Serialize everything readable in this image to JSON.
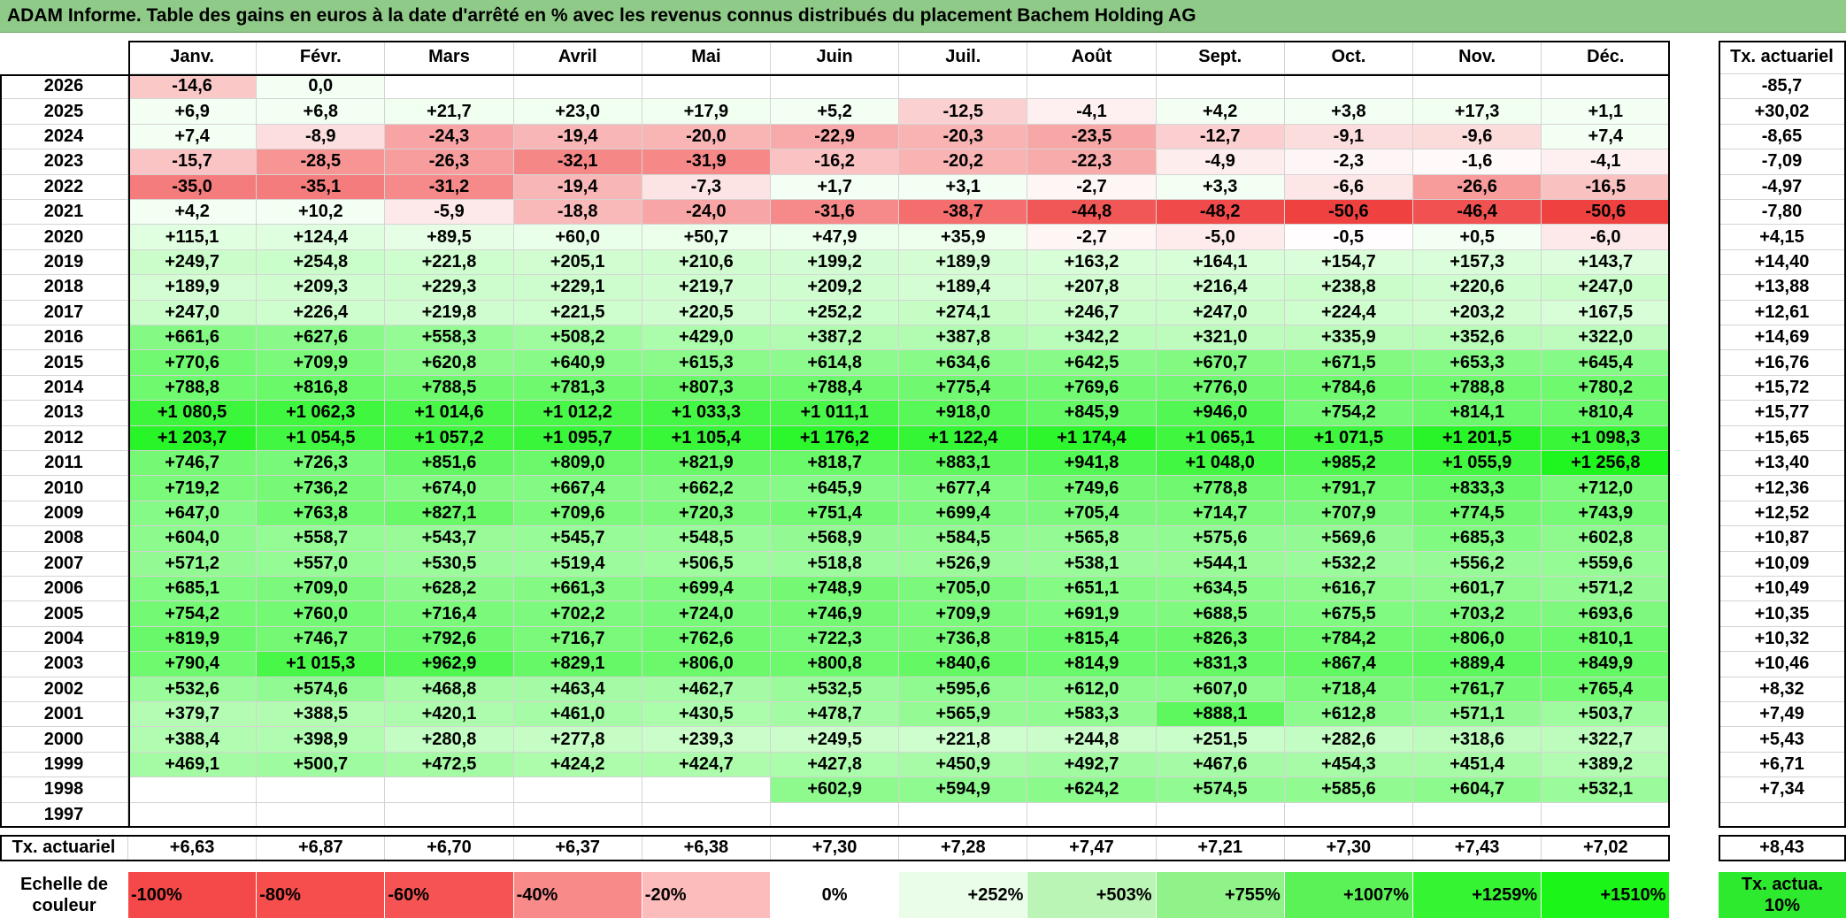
{
  "title": "ADAM Informe. Table des gains en euros à la date d'arrêté en % avec les revenus connus distribués du placement Bachem Holding AG",
  "chart_data": {
    "type": "heatmap",
    "columns": [
      "Janv.",
      "Févr.",
      "Mars",
      "Avril",
      "Mai",
      "Juin",
      "Juil.",
      "Août",
      "Sept.",
      "Oct.",
      "Nov.",
      "Déc."
    ],
    "rate_header": "Tx. actuariel",
    "rows": [
      {
        "year": "2026",
        "values": [
          "-14,6",
          "0,0",
          "",
          "",
          "",
          "",
          "",
          "",
          "",
          "",
          "",
          ""
        ],
        "rate": "-85,7"
      },
      {
        "year": "2025",
        "values": [
          "+6,9",
          "+6,8",
          "+21,7",
          "+23,0",
          "+17,9",
          "+5,2",
          "-12,5",
          "-4,1",
          "+4,2",
          "+3,8",
          "+17,3",
          "+1,1"
        ],
        "rate": "+30,02"
      },
      {
        "year": "2024",
        "values": [
          "+7,4",
          "-8,9",
          "-24,3",
          "-19,4",
          "-20,0",
          "-22,9",
          "-20,3",
          "-23,5",
          "-12,7",
          "-9,1",
          "-9,6",
          "+7,4"
        ],
        "rate": "-8,65"
      },
      {
        "year": "2023",
        "values": [
          "-15,7",
          "-28,5",
          "-26,3",
          "-32,1",
          "-31,9",
          "-16,2",
          "-20,2",
          "-22,3",
          "-4,9",
          "-2,3",
          "-1,6",
          "-4,1"
        ],
        "rate": "-7,09"
      },
      {
        "year": "2022",
        "values": [
          "-35,0",
          "-35,1",
          "-31,2",
          "-19,4",
          "-7,3",
          "+1,7",
          "+3,1",
          "-2,7",
          "+3,3",
          "-6,6",
          "-26,6",
          "-16,5"
        ],
        "rate": "-4,97"
      },
      {
        "year": "2021",
        "values": [
          "+4,2",
          "+10,2",
          "-5,9",
          "-18,8",
          "-24,0",
          "-31,6",
          "-38,7",
          "-44,8",
          "-48,2",
          "-50,6",
          "-46,4",
          "-50,6"
        ],
        "rate": "-7,80"
      },
      {
        "year": "2020",
        "values": [
          "+115,1",
          "+124,4",
          "+89,5",
          "+60,0",
          "+50,7",
          "+47,9",
          "+35,9",
          "-2,7",
          "-5,0",
          "-0,5",
          "+0,5",
          "-6,0"
        ],
        "rate": "+4,15"
      },
      {
        "year": "2019",
        "values": [
          "+249,7",
          "+254,8",
          "+221,8",
          "+205,1",
          "+210,6",
          "+199,2",
          "+189,9",
          "+163,2",
          "+164,1",
          "+154,7",
          "+157,3",
          "+143,7"
        ],
        "rate": "+14,40"
      },
      {
        "year": "2018",
        "values": [
          "+189,9",
          "+209,3",
          "+229,3",
          "+229,1",
          "+219,7",
          "+209,2",
          "+189,4",
          "+207,8",
          "+216,4",
          "+238,8",
          "+220,6",
          "+247,0"
        ],
        "rate": "+13,88"
      },
      {
        "year": "2017",
        "values": [
          "+247,0",
          "+226,4",
          "+219,8",
          "+221,5",
          "+220,5",
          "+252,2",
          "+274,1",
          "+246,7",
          "+247,0",
          "+224,4",
          "+203,2",
          "+167,5"
        ],
        "rate": "+12,61"
      },
      {
        "year": "2016",
        "values": [
          "+661,6",
          "+627,6",
          "+558,3",
          "+508,2",
          "+429,0",
          "+387,2",
          "+387,8",
          "+342,2",
          "+321,0",
          "+335,9",
          "+352,6",
          "+322,0"
        ],
        "rate": "+14,69"
      },
      {
        "year": "2015",
        "values": [
          "+770,6",
          "+709,9",
          "+620,8",
          "+640,9",
          "+615,3",
          "+614,8",
          "+634,6",
          "+642,5",
          "+670,7",
          "+671,5",
          "+653,3",
          "+645,4"
        ],
        "rate": "+16,76"
      },
      {
        "year": "2014",
        "values": [
          "+788,8",
          "+816,8",
          "+788,5",
          "+781,3",
          "+807,3",
          "+788,4",
          "+775,4",
          "+769,6",
          "+776,0",
          "+784,6",
          "+788,8",
          "+780,2"
        ],
        "rate": "+15,72"
      },
      {
        "year": "2013",
        "values": [
          "+1 080,5",
          "+1 062,3",
          "+1 014,6",
          "+1 012,2",
          "+1 033,3",
          "+1 011,1",
          "+918,0",
          "+845,9",
          "+946,0",
          "+754,2",
          "+814,1",
          "+810,4"
        ],
        "rate": "+15,77"
      },
      {
        "year": "2012",
        "values": [
          "+1 203,7",
          "+1 054,5",
          "+1 057,2",
          "+1 095,7",
          "+1 105,4",
          "+1 176,2",
          "+1 122,4",
          "+1 174,4",
          "+1 065,1",
          "+1 071,5",
          "+1 201,5",
          "+1 098,3"
        ],
        "rate": "+15,65"
      },
      {
        "year": "2011",
        "values": [
          "+746,7",
          "+726,3",
          "+851,6",
          "+809,0",
          "+821,9",
          "+818,7",
          "+883,1",
          "+941,8",
          "+1 048,0",
          "+985,2",
          "+1 055,9",
          "+1 256,8"
        ],
        "rate": "+13,40"
      },
      {
        "year": "2010",
        "values": [
          "+719,2",
          "+736,2",
          "+674,0",
          "+667,4",
          "+662,2",
          "+645,9",
          "+677,4",
          "+749,6",
          "+778,8",
          "+791,7",
          "+833,3",
          "+712,0"
        ],
        "rate": "+12,36"
      },
      {
        "year": "2009",
        "values": [
          "+647,0",
          "+763,8",
          "+827,1",
          "+709,6",
          "+720,3",
          "+751,4",
          "+699,4",
          "+705,4",
          "+714,7",
          "+707,9",
          "+774,5",
          "+743,9"
        ],
        "rate": "+12,52"
      },
      {
        "year": "2008",
        "values": [
          "+604,0",
          "+558,7",
          "+543,7",
          "+545,7",
          "+548,5",
          "+568,9",
          "+584,5",
          "+565,8",
          "+575,6",
          "+569,6",
          "+685,3",
          "+602,8"
        ],
        "rate": "+10,87"
      },
      {
        "year": "2007",
        "values": [
          "+571,2",
          "+557,0",
          "+530,5",
          "+519,4",
          "+506,5",
          "+518,8",
          "+526,9",
          "+538,1",
          "+544,1",
          "+532,2",
          "+556,2",
          "+559,6"
        ],
        "rate": "+10,09"
      },
      {
        "year": "2006",
        "values": [
          "+685,1",
          "+709,0",
          "+628,2",
          "+661,3",
          "+699,4",
          "+748,9",
          "+705,0",
          "+651,1",
          "+634,5",
          "+616,7",
          "+601,7",
          "+571,2"
        ],
        "rate": "+10,49"
      },
      {
        "year": "2005",
        "values": [
          "+754,2",
          "+760,0",
          "+716,4",
          "+702,2",
          "+724,0",
          "+746,9",
          "+709,9",
          "+691,9",
          "+688,5",
          "+675,5",
          "+703,2",
          "+693,6"
        ],
        "rate": "+10,35"
      },
      {
        "year": "2004",
        "values": [
          "+819,9",
          "+746,7",
          "+792,6",
          "+716,7",
          "+762,6",
          "+722,3",
          "+736,8",
          "+815,4",
          "+826,3",
          "+784,2",
          "+806,0",
          "+810,1"
        ],
        "rate": "+10,32"
      },
      {
        "year": "2003",
        "values": [
          "+790,4",
          "+1 015,3",
          "+962,9",
          "+829,1",
          "+806,0",
          "+800,8",
          "+840,6",
          "+814,9",
          "+831,3",
          "+867,4",
          "+889,4",
          "+849,9"
        ],
        "rate": "+10,46"
      },
      {
        "year": "2002",
        "values": [
          "+532,6",
          "+574,6",
          "+468,8",
          "+463,4",
          "+462,7",
          "+532,5",
          "+595,6",
          "+612,0",
          "+607,0",
          "+718,4",
          "+761,7",
          "+765,4"
        ],
        "rate": "+8,32"
      },
      {
        "year": "2001",
        "values": [
          "+379,7",
          "+388,5",
          "+420,1",
          "+461,0",
          "+430,5",
          "+478,7",
          "+565,9",
          "+583,3",
          "+888,1",
          "+612,8",
          "+571,1",
          "+503,7"
        ],
        "rate": "+7,49"
      },
      {
        "year": "2000",
        "values": [
          "+388,4",
          "+398,9",
          "+280,8",
          "+277,8",
          "+239,3",
          "+249,5",
          "+221,8",
          "+244,8",
          "+251,5",
          "+282,6",
          "+318,6",
          "+322,7"
        ],
        "rate": "+5,43"
      },
      {
        "year": "1999",
        "values": [
          "+469,1",
          "+500,7",
          "+472,5",
          "+424,2",
          "+424,7",
          "+427,8",
          "+450,9",
          "+492,7",
          "+467,6",
          "+454,3",
          "+451,4",
          "+389,2"
        ],
        "rate": "+6,71"
      },
      {
        "year": "1998",
        "values": [
          "",
          "",
          "",
          "",
          "",
          "+602,9",
          "+594,9",
          "+624,2",
          "+574,5",
          "+585,6",
          "+604,7",
          "+532,1"
        ],
        "rate": "+7,34"
      },
      {
        "year": "1997",
        "values": [
          "",
          "",
          "",
          "",
          "",
          "",
          "",
          "",
          "",
          "",
          "",
          ""
        ],
        "rate": ""
      }
    ],
    "footer_label": "Tx. actuariel",
    "footer_values": [
      "+6,63",
      "+6,87",
      "+6,70",
      "+6,37",
      "+6,38",
      "+7,30",
      "+7,28",
      "+7,47",
      "+7,21",
      "+7,30",
      "+7,43",
      "+7,02"
    ],
    "footer_total": "+8,43",
    "scale_label": "Echelle de couleur",
    "scale": [
      "-100%",
      "-80%",
      "-60%",
      "-40%",
      "-20%",
      "0%",
      "+252%",
      "+503%",
      "+755%",
      "+1007%",
      "+1259%",
      "+1510%"
    ],
    "scale_colors": [
      "#f54848",
      "#f64d4d",
      "#f65454",
      "#f98a8a",
      "#fdbcbc",
      "#ffffff",
      "#e9fde9",
      "#bbf5b5",
      "#8ff38a",
      "#5af257",
      "#35f532",
      "#1cf518"
    ],
    "scale_extra": "Tx. actua. 10%",
    "scale_extra_color": "#2eea2e",
    "colors": {
      "title_bg": "#8fca88",
      "neg_max": "#f04040",
      "pos_max": "#1cf51c"
    }
  }
}
